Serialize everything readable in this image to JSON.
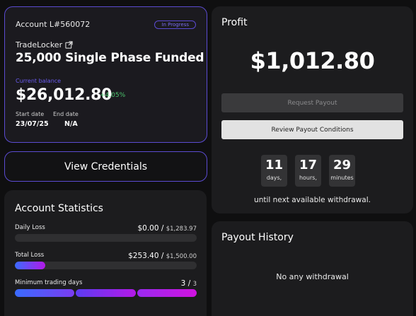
{
  "account": {
    "number_label": "Account L#560072",
    "status_badge": "In Progress",
    "platform": "TradeLocker",
    "plan": "25,000 Single Phase Funded",
    "balance_label": "Current balance",
    "balance": "$26,012.80",
    "change": "+4.05%",
    "start_date_label": "Start date",
    "start_date": "23/07/25",
    "end_date_label": "End date",
    "end_date": "N/A"
  },
  "credentials_button": "View Credentials",
  "stats": {
    "title": "Account Statistics",
    "daily_loss": {
      "label": "Daily Loss",
      "value": "$0.00",
      "sep": " / ",
      "limit": "$1,283.97",
      "fraction": 0.0
    },
    "total_loss": {
      "label": "Total Loss",
      "value": "$253.40",
      "sep": " / ",
      "limit": "$1,500.00",
      "fraction": 0.169
    },
    "trading_days": {
      "label": "Minimum trading days",
      "value": "3",
      "sep": " / ",
      "limit": "3",
      "completed": 3,
      "required": 3
    }
  },
  "profit": {
    "title": "Profit",
    "amount": "$1,012.80",
    "request_button": "Request Payout",
    "review_button": "Review Payout Conditions",
    "countdown": [
      {
        "value": "11",
        "unit": "days,"
      },
      {
        "value": "17",
        "unit": "hours,"
      },
      {
        "value": "29",
        "unit": "minutes"
      }
    ],
    "until_text": "until next available withdrawal."
  },
  "history": {
    "title": "Payout History",
    "empty_text": "No any withdrawal"
  },
  "colors": {
    "accent": "#5b4bd1",
    "positive": "#4cc66e",
    "gradient_start": "#3a6bff",
    "gradient_end": "#b319e8"
  },
  "icons": {
    "external_link": "external-link-icon"
  }
}
